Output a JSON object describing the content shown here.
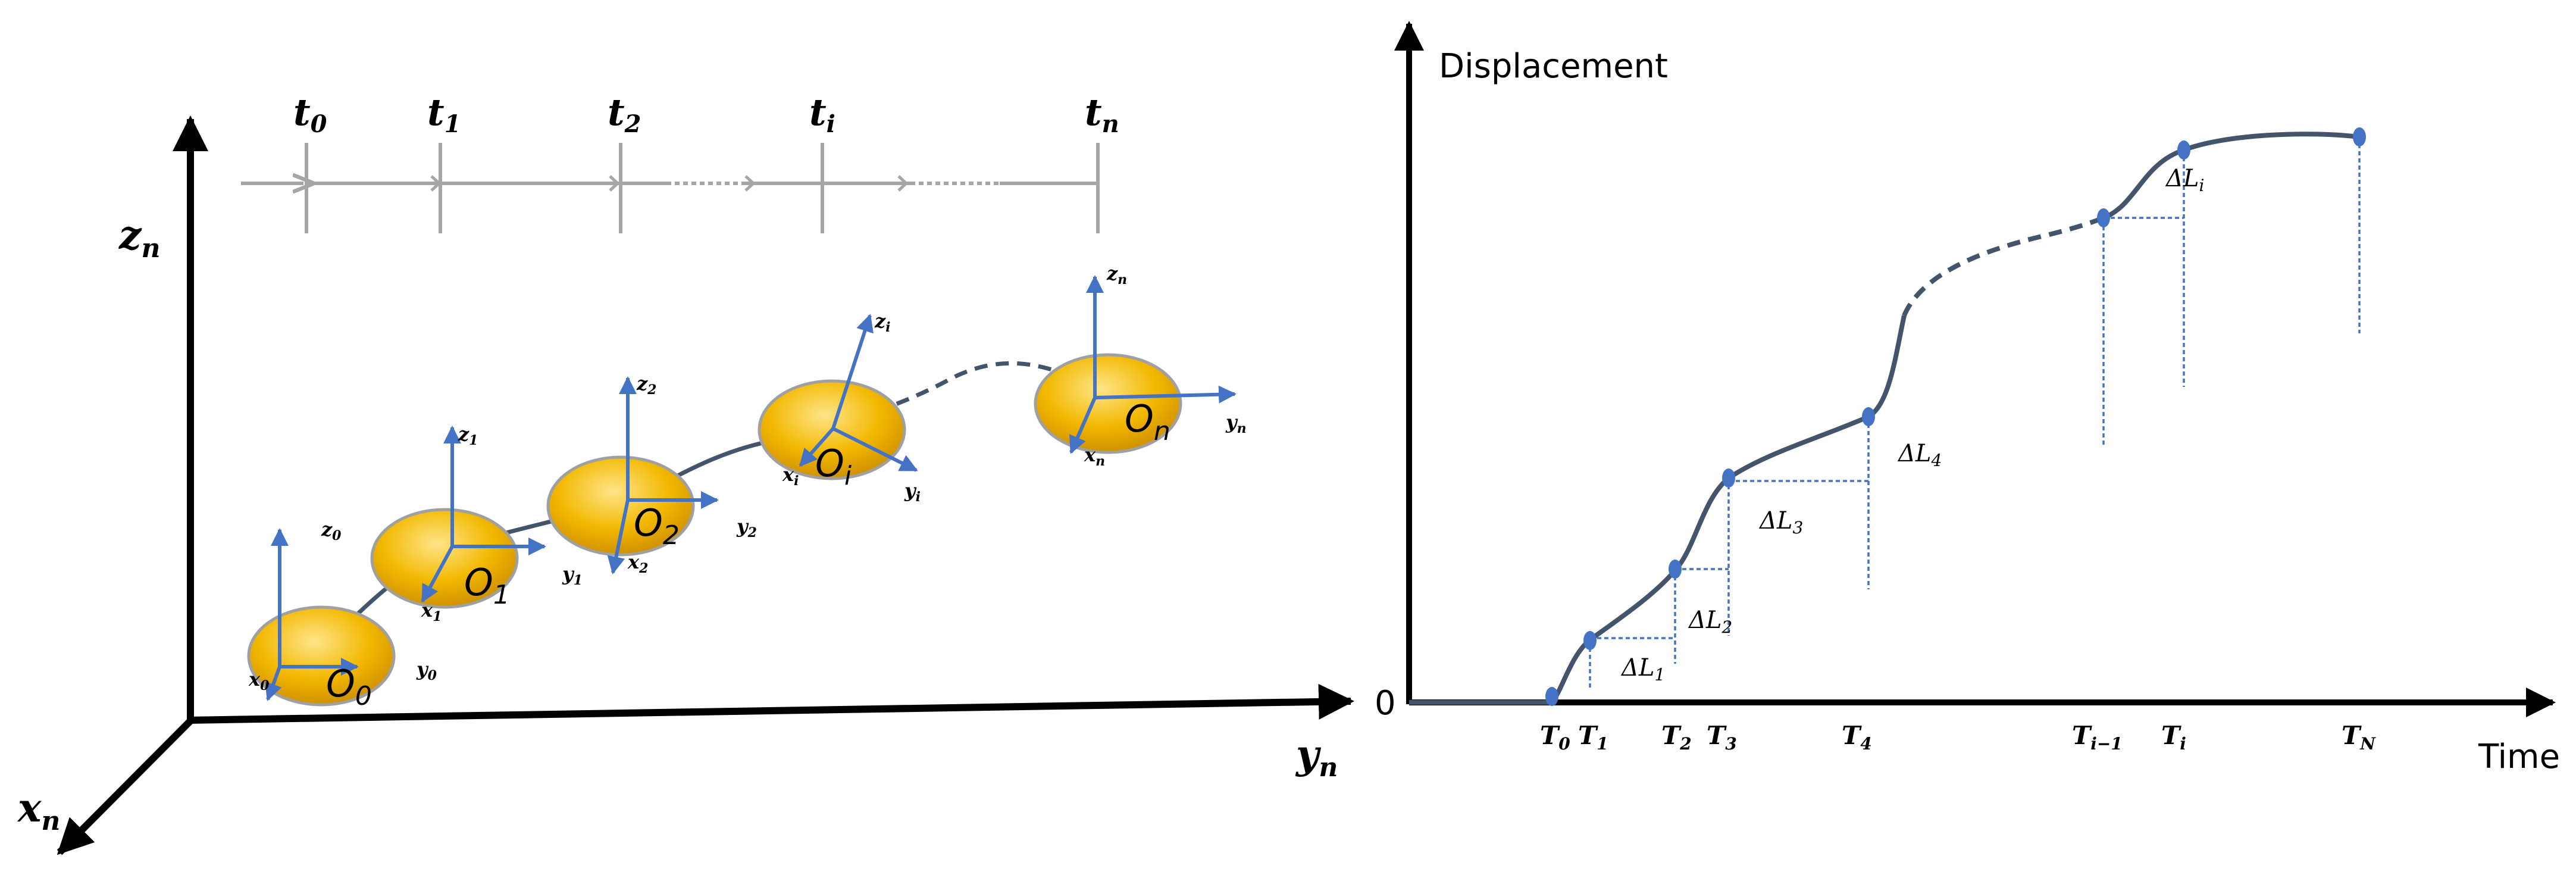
{
  "colors": {
    "axis": "#000000",
    "timeline": "#a6a6a6",
    "frame_axes": "#4472c4",
    "trajectory": "#44546a",
    "body_fill": "#e8a800",
    "body_highlight": "#ffe27a",
    "guide": "#4472c4",
    "dot": "#4472c4"
  },
  "left_panel": {
    "axis_labels": {
      "z": "z",
      "z_sub": "n",
      "y": "y",
      "y_sub": "n",
      "x": "x",
      "x_sub": "n"
    },
    "timeline": [
      {
        "main": "t",
        "sub": "0"
      },
      {
        "main": "t",
        "sub": "1"
      },
      {
        "main": "t",
        "sub": "2"
      },
      {
        "main": "t",
        "sub": "i"
      },
      {
        "main": "t",
        "sub": "n"
      }
    ],
    "frames": [
      {
        "origin": "O",
        "origin_sub": "0",
        "z": "z",
        "z_sub": "0",
        "y": "y",
        "y_sub": "0",
        "x": "x",
        "x_sub": "0"
      },
      {
        "origin": "O",
        "origin_sub": "1",
        "z": "z",
        "z_sub": "1",
        "y": "y",
        "y_sub": "1",
        "x": "x",
        "x_sub": "1"
      },
      {
        "origin": "O",
        "origin_sub": "2",
        "z": "z",
        "z_sub": "2",
        "y": "y",
        "y_sub": "2",
        "x": "x",
        "x_sub": "2"
      },
      {
        "origin": "O",
        "origin_sub": "i",
        "z": "z",
        "z_sub": "i",
        "y": "y",
        "y_sub": "i",
        "x": "x",
        "x_sub": "i"
      },
      {
        "origin": "O",
        "origin_sub": "n",
        "z": "z",
        "z_sub": "n",
        "y": "y",
        "y_sub": "n",
        "x": "x",
        "x_sub": "n"
      }
    ]
  },
  "right_panel": {
    "ylabel": "Displacement",
    "xlabel": "Time",
    "origin_label": "0",
    "time_ticks": [
      {
        "main": "T",
        "sub": "0"
      },
      {
        "main": "T",
        "sub": "1"
      },
      {
        "main": "T",
        "sub": "2"
      },
      {
        "main": "T",
        "sub": "3"
      },
      {
        "main": "T",
        "sub": "4"
      },
      {
        "main": "T",
        "sub": "i−1"
      },
      {
        "main": "T",
        "sub": "i"
      },
      {
        "main": "T",
        "sub": "N"
      }
    ],
    "delta_labels": [
      {
        "main": "ΔL",
        "sub": "1"
      },
      {
        "main": "ΔL",
        "sub": "2"
      },
      {
        "main": "ΔL",
        "sub": "3"
      },
      {
        "main": "ΔL",
        "sub": "4"
      },
      {
        "main": "ΔL",
        "sub": "i"
      }
    ]
  }
}
